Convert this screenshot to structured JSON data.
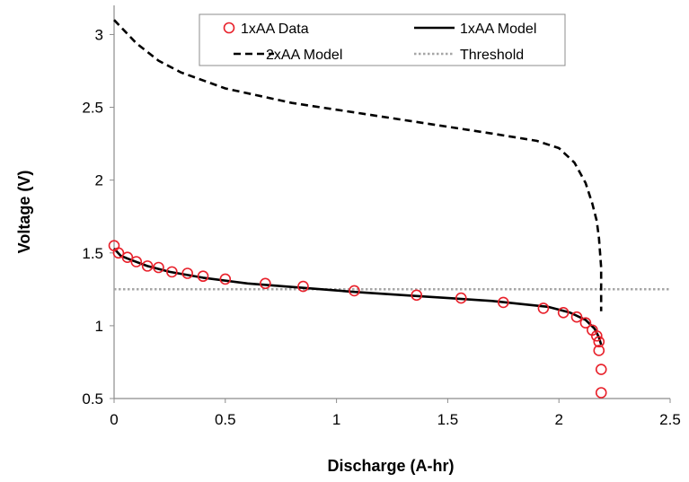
{
  "chart_data": {
    "type": "scatter",
    "xlabel": "Discharge (A-hr)",
    "ylabel": "Voltage (V)",
    "xlim": [
      0,
      2.5
    ],
    "ylim": [
      0.5,
      3.2
    ],
    "x_ticks": [
      0,
      0.5,
      1,
      1.5,
      2,
      2.5
    ],
    "x_tick_labels": [
      "0",
      "0.5",
      "1",
      "1.5",
      "2",
      "2.5"
    ],
    "y_ticks": [
      0.5,
      1,
      1.5,
      2,
      2.5,
      3
    ],
    "y_tick_labels": [
      "0.5",
      "1",
      "1.5",
      "2",
      "2.5",
      "3"
    ],
    "grid": false,
    "legend_position": "top",
    "series": [
      {
        "name": "1xAA Data",
        "style": "markers",
        "color": "#e8202a",
        "x": [
          0.0,
          0.02,
          0.06,
          0.1,
          0.15,
          0.2,
          0.26,
          0.33,
          0.4,
          0.5,
          0.68,
          0.85,
          1.08,
          1.36,
          1.56,
          1.75,
          1.93,
          2.02,
          2.08,
          2.12,
          2.15,
          2.17,
          2.18,
          2.18,
          2.19,
          2.19
        ],
        "y": [
          1.55,
          1.5,
          1.47,
          1.44,
          1.41,
          1.4,
          1.37,
          1.36,
          1.34,
          1.32,
          1.29,
          1.27,
          1.24,
          1.21,
          1.19,
          1.16,
          1.12,
          1.09,
          1.06,
          1.02,
          0.97,
          0.93,
          0.89,
          0.83,
          0.7,
          0.54
        ]
      },
      {
        "name": "1xAA Model",
        "style": "solid",
        "color": "#000000",
        "x": [
          0.0,
          0.03,
          0.08,
          0.15,
          0.25,
          0.4,
          0.6,
          0.85,
          1.1,
          1.4,
          1.7,
          1.95,
          2.05,
          2.12,
          2.16,
          2.18,
          2.19
        ],
        "y": [
          1.53,
          1.48,
          1.45,
          1.41,
          1.37,
          1.33,
          1.29,
          1.26,
          1.23,
          1.2,
          1.17,
          1.13,
          1.09,
          1.04,
          0.98,
          0.92,
          0.87
        ]
      },
      {
        "name": "2xAA Model",
        "style": "dashed",
        "color": "#000000",
        "x": [
          0.0,
          0.05,
          0.1,
          0.2,
          0.3,
          0.5,
          0.8,
          1.1,
          1.4,
          1.7,
          1.9,
          2.0,
          2.07,
          2.12,
          2.15,
          2.17,
          2.18,
          2.19,
          2.19
        ],
        "y": [
          3.1,
          3.02,
          2.94,
          2.82,
          2.74,
          2.63,
          2.53,
          2.46,
          2.39,
          2.32,
          2.27,
          2.22,
          2.12,
          1.98,
          1.84,
          1.72,
          1.6,
          1.4,
          1.1
        ]
      },
      {
        "name": "Threshold",
        "style": "dotted",
        "color": "#a6a6a6",
        "x": [
          0.0,
          2.5
        ],
        "y": [
          1.25,
          1.25
        ]
      }
    ]
  }
}
